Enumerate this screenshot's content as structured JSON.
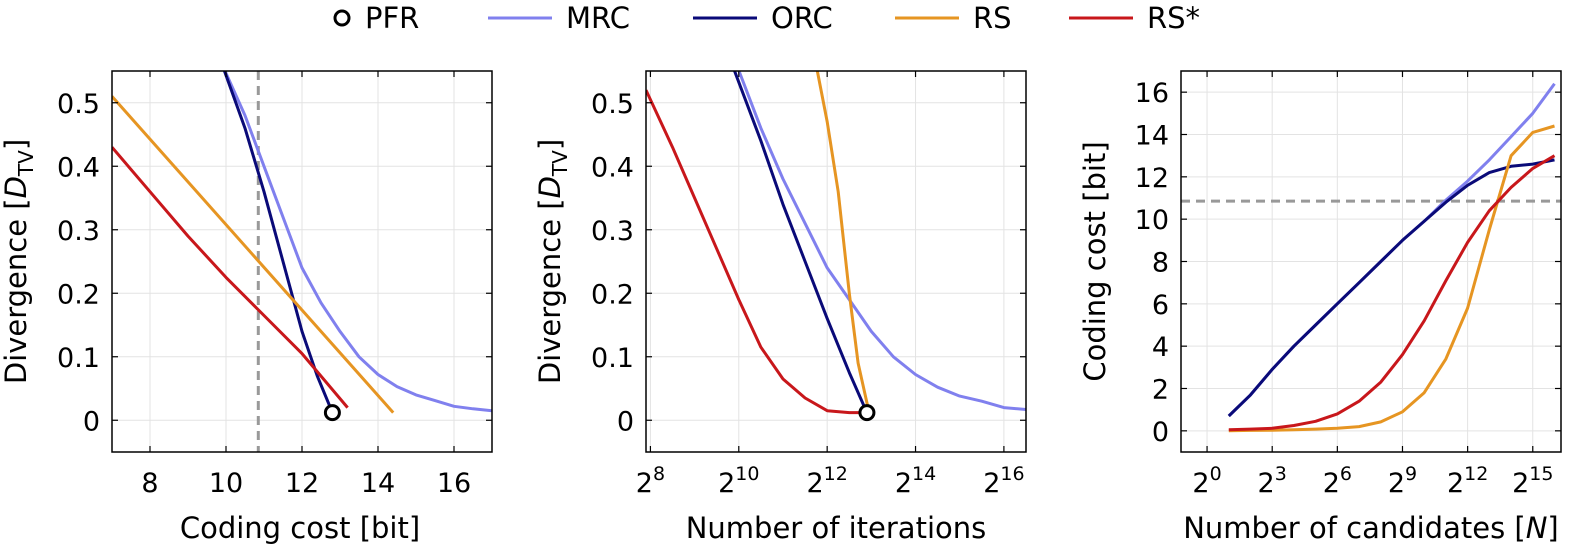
{
  "colors": {
    "PFR": "#000000",
    "MRC": "#8080ee",
    "ORC": "#0a0a78",
    "RS": "#e69522",
    "RS*": "#c8171b",
    "grid": "#e3e3e3",
    "threshold": "#999999"
  },
  "legend": [
    {
      "key": "PFR",
      "label": "PFR",
      "marker": "circle"
    },
    {
      "key": "MRC",
      "label": "MRC",
      "marker": "line"
    },
    {
      "key": "ORC",
      "label": "ORC",
      "marker": "line"
    },
    {
      "key": "RS",
      "label": "RS",
      "marker": "line"
    },
    {
      "key": "RS*",
      "label": "RS*",
      "marker": "line"
    }
  ],
  "chart_data": [
    {
      "type": "line",
      "xlabel": "Coding cost [bit]",
      "ylabel": "Divergence [D_TV]",
      "ylabel_parts": {
        "main": "Divergence [",
        "italic": "D",
        "sub": "TV",
        "close": "]"
      },
      "xscale": "linear",
      "xlim": [
        7,
        17
      ],
      "ylim": [
        -0.05,
        0.55
      ],
      "xticks": [
        {
          "v": 8,
          "label": "8"
        },
        {
          "v": 10,
          "label": "10"
        },
        {
          "v": 12,
          "label": "12"
        },
        {
          "v": 14,
          "label": "14"
        },
        {
          "v": 16,
          "label": "16"
        }
      ],
      "yticks": [
        {
          "v": 0,
          "label": "0"
        },
        {
          "v": 0.1,
          "label": "0.1"
        },
        {
          "v": 0.2,
          "label": "0.2"
        },
        {
          "v": 0.3,
          "label": "0.3"
        },
        {
          "v": 0.4,
          "label": "0.4"
        },
        {
          "v": 0.5,
          "label": "0.5"
        }
      ],
      "vline": 10.85,
      "grid": true,
      "series": [
        {
          "name": "MRC",
          "x": [
            9.9,
            10.5,
            11.0,
            11.5,
            12.0,
            12.5,
            13.0,
            13.5,
            14.0,
            14.5,
            15.0,
            15.5,
            16.0,
            16.5,
            17.0
          ],
          "y": [
            0.56,
            0.48,
            0.4,
            0.32,
            0.24,
            0.185,
            0.14,
            0.1,
            0.072,
            0.053,
            0.04,
            0.031,
            0.022,
            0.018,
            0.015
          ]
        },
        {
          "name": "ORC",
          "x": [
            9.9,
            10.5,
            11.0,
            11.5,
            12.0,
            12.4,
            12.8
          ],
          "y": [
            0.56,
            0.46,
            0.36,
            0.25,
            0.14,
            0.07,
            0.012
          ]
        },
        {
          "name": "RS",
          "x": [
            7.0,
            14.4
          ],
          "y": [
            0.51,
            0.012
          ]
        },
        {
          "name": "RS*",
          "x": [
            7.0,
            8.0,
            9.0,
            10.0,
            11.0,
            12.0,
            13.2
          ],
          "y": [
            0.43,
            0.36,
            0.29,
            0.225,
            0.165,
            0.105,
            0.02
          ]
        }
      ],
      "points": [
        {
          "name": "PFR",
          "x": 12.8,
          "y": 0.012
        }
      ]
    },
    {
      "type": "line",
      "xlabel": "Number of iterations",
      "ylabel": "Divergence [D_TV]",
      "ylabel_parts": {
        "main": "Divergence [",
        "italic": "D",
        "sub": "TV",
        "close": "]"
      },
      "xscale": "log2",
      "xlim": [
        7.9,
        16.5
      ],
      "ylim": [
        -0.05,
        0.55
      ],
      "xticks": [
        {
          "v": 8,
          "base": "2",
          "exp": "8"
        },
        {
          "v": 10,
          "base": "2",
          "exp": "10"
        },
        {
          "v": 12,
          "base": "2",
          "exp": "12"
        },
        {
          "v": 14,
          "base": "2",
          "exp": "14"
        },
        {
          "v": 16,
          "base": "2",
          "exp": "16"
        }
      ],
      "yticks": [
        {
          "v": 0,
          "label": "0"
        },
        {
          "v": 0.1,
          "label": "0.1"
        },
        {
          "v": 0.2,
          "label": "0.2"
        },
        {
          "v": 0.3,
          "label": "0.3"
        },
        {
          "v": 0.4,
          "label": "0.4"
        },
        {
          "v": 0.5,
          "label": "0.5"
        }
      ],
      "grid": true,
      "series": [
        {
          "name": "MRC",
          "x": [
            9.95,
            10.5,
            11.0,
            11.5,
            12.0,
            12.5,
            13.0,
            13.5,
            14.0,
            14.5,
            15.0,
            15.5,
            16.0,
            16.5
          ],
          "y": [
            0.56,
            0.46,
            0.38,
            0.31,
            0.24,
            0.19,
            0.14,
            0.1,
            0.072,
            0.052,
            0.038,
            0.03,
            0.02,
            0.017
          ]
        },
        {
          "name": "ORC",
          "x": [
            9.85,
            10.5,
            11.0,
            11.5,
            12.0,
            12.5,
            12.9
          ],
          "y": [
            0.56,
            0.44,
            0.34,
            0.25,
            0.16,
            0.075,
            0.012
          ]
        },
        {
          "name": "RS",
          "x": [
            11.75,
            12.0,
            12.25,
            12.5,
            12.7,
            12.95
          ],
          "y": [
            0.56,
            0.47,
            0.36,
            0.2,
            0.09,
            0.012
          ]
        },
        {
          "name": "RS*",
          "x": [
            7.9,
            8.5,
            9.0,
            9.5,
            10.0,
            10.5,
            11.0,
            11.5,
            12.0,
            12.5,
            12.9
          ],
          "y": [
            0.52,
            0.43,
            0.35,
            0.27,
            0.19,
            0.115,
            0.065,
            0.035,
            0.015,
            0.012,
            0.012
          ]
        }
      ],
      "points": [
        {
          "name": "PFR",
          "x": 12.9,
          "y": 0.012
        }
      ]
    },
    {
      "type": "line",
      "xlabel": "Number of candidates [N]",
      "xlabel_parts": {
        "main": "Number of candidates [",
        "italic": "N",
        "close": "]"
      },
      "ylabel": "Coding cost [bit]",
      "xscale": "log2",
      "xlim": [
        -1.2,
        16.3
      ],
      "ylim": [
        -1,
        17
      ],
      "xticks": [
        {
          "v": 0,
          "base": "2",
          "exp": "0"
        },
        {
          "v": 3,
          "base": "2",
          "exp": "3"
        },
        {
          "v": 6,
          "base": "2",
          "exp": "6"
        },
        {
          "v": 9,
          "base": "2",
          "exp": "9"
        },
        {
          "v": 12,
          "base": "2",
          "exp": "12"
        },
        {
          "v": 15,
          "base": "2",
          "exp": "15"
        }
      ],
      "yticks": [
        {
          "v": 0,
          "label": "0"
        },
        {
          "v": 2,
          "label": "2"
        },
        {
          "v": 4,
          "label": "4"
        },
        {
          "v": 6,
          "label": "6"
        },
        {
          "v": 8,
          "label": "8"
        },
        {
          "v": 10,
          "label": "10"
        },
        {
          "v": 12,
          "label": "12"
        },
        {
          "v": 14,
          "label": "14"
        },
        {
          "v": 16,
          "label": "16"
        }
      ],
      "hline": 10.85,
      "grid": true,
      "series": [
        {
          "name": "MRC",
          "x": [
            1,
            2,
            3,
            4,
            5,
            6,
            7,
            8,
            9,
            10,
            11,
            12,
            13,
            14,
            15,
            16
          ],
          "y": [
            0.7,
            1.7,
            2.9,
            4.0,
            5.0,
            6.0,
            7.0,
            8.0,
            9.0,
            9.9,
            10.9,
            11.8,
            12.8,
            13.9,
            15.0,
            16.4
          ]
        },
        {
          "name": "ORC",
          "x": [
            1,
            2,
            3,
            4,
            5,
            6,
            7,
            8,
            9,
            10,
            11,
            12,
            13,
            14,
            15,
            16
          ],
          "y": [
            0.7,
            1.7,
            2.9,
            4.0,
            5.0,
            6.0,
            7.0,
            8.0,
            9.0,
            9.9,
            10.8,
            11.6,
            12.2,
            12.5,
            12.6,
            12.8
          ]
        },
        {
          "name": "RS",
          "x": [
            1,
            2,
            3,
            4,
            5,
            6,
            7,
            8,
            9,
            10,
            11,
            12,
            13,
            14,
            15,
            16
          ],
          "y": [
            0.0,
            0.02,
            0.03,
            0.05,
            0.08,
            0.12,
            0.2,
            0.42,
            0.9,
            1.8,
            3.4,
            5.8,
            9.5,
            13.0,
            14.1,
            14.4
          ]
        },
        {
          "name": "RS*",
          "x": [
            1,
            2,
            3,
            4,
            5,
            6,
            7,
            8,
            9,
            10,
            11,
            12,
            13,
            14,
            15,
            16
          ],
          "y": [
            0.05,
            0.08,
            0.12,
            0.25,
            0.45,
            0.8,
            1.4,
            2.3,
            3.6,
            5.2,
            7.1,
            8.9,
            10.4,
            11.5,
            12.4,
            13.0
          ]
        }
      ],
      "points": []
    }
  ]
}
